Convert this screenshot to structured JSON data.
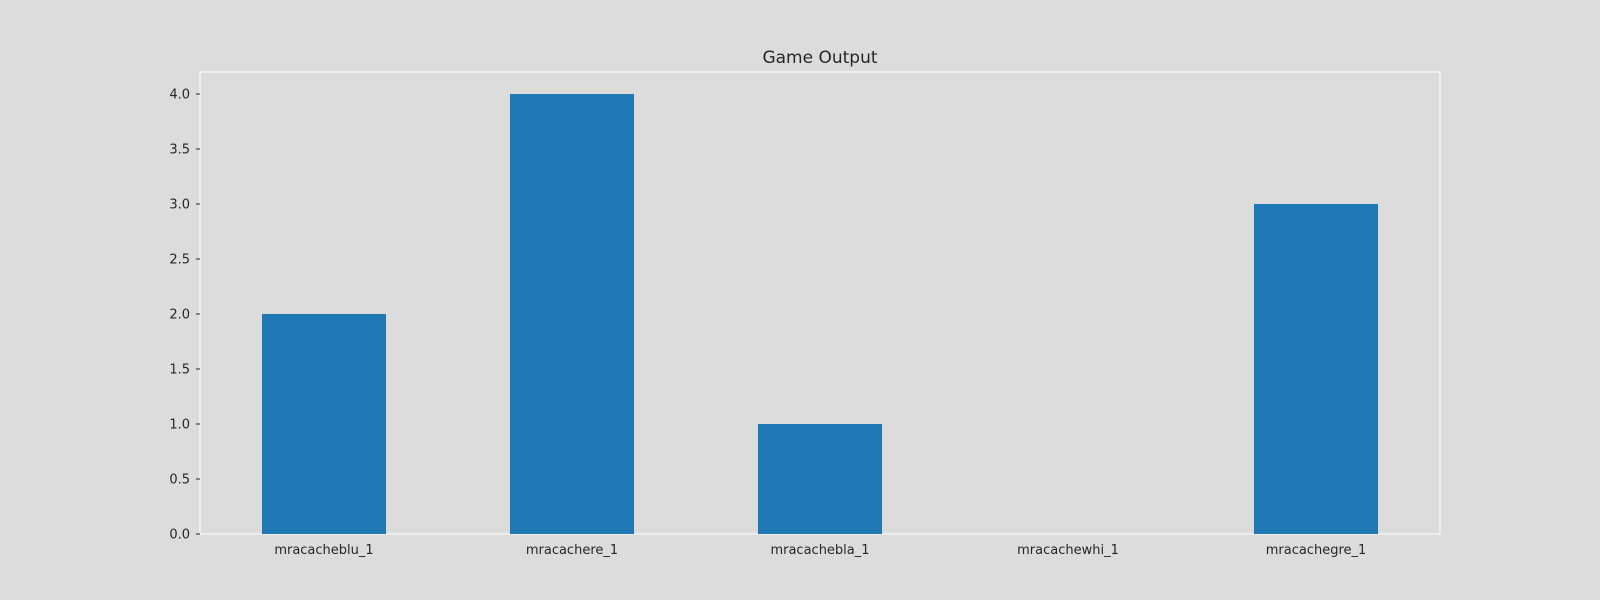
{
  "chart_data": {
    "type": "bar",
    "title": "Game Output",
    "xlabel": "",
    "ylabel": "",
    "categories": [
      "mracacheblu_1",
      "mracachere_1",
      "mracachebla_1",
      "mracachewhi_1",
      "mracachegre_1"
    ],
    "values": [
      2,
      4,
      1,
      0,
      3
    ],
    "ylim": [
      0,
      4.2
    ],
    "yticks": [
      "0.0",
      "0.5",
      "1.0",
      "1.5",
      "2.0",
      "2.5",
      "3.0",
      "3.5",
      "4.0"
    ],
    "grid": false,
    "legend": "none",
    "bar_color": "#1f77b4",
    "background_color": "#dcdcdc",
    "frame_color": "#ffffff"
  }
}
